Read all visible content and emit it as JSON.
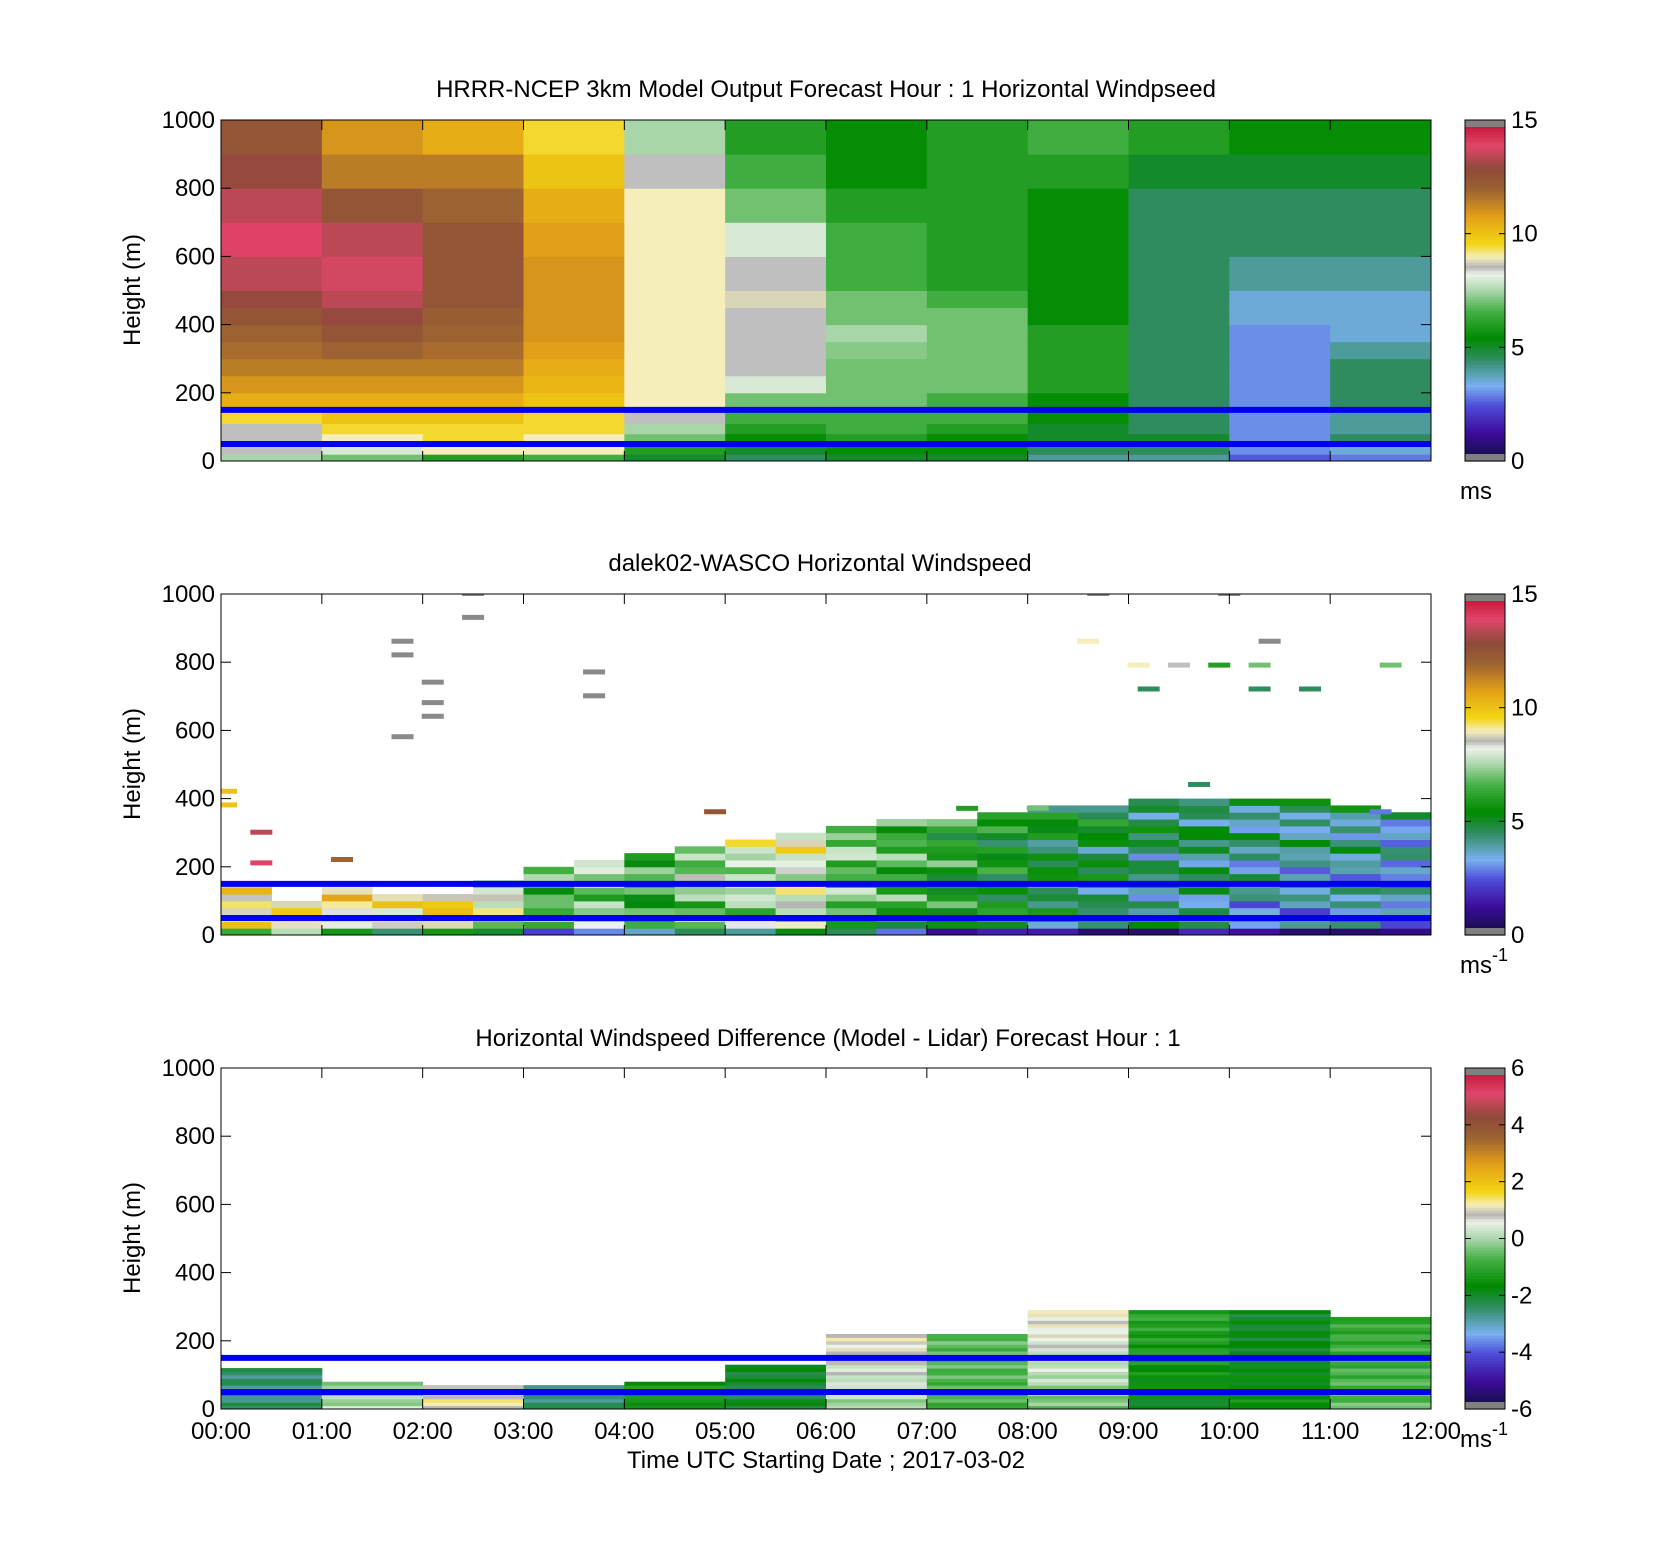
{
  "chart_data": [
    {
      "type": "heatmap",
      "title": "HRRR-NCEP 3km Model Output   Forecast Hour : 1 Horizontal Windpseed",
      "ylabel": "Height (m)",
      "xlim": [
        0,
        12
      ],
      "ylim": [
        0,
        1000
      ],
      "yticks": [
        "0",
        "200",
        "400",
        "600",
        "800",
        "1000"
      ],
      "colorbar": {
        "label": "ms",
        "superscript": "",
        "ticks": [
          "0",
          "5",
          "10",
          "15"
        ],
        "range": [
          0,
          15
        ]
      },
      "reference_lines_m": [
        150,
        50
      ],
      "heights_m": [
        20,
        50,
        80,
        110,
        150,
        200,
        250,
        300,
        350,
        400,
        450,
        500,
        600,
        700,
        800,
        900,
        1000
      ],
      "hours": [
        0,
        1,
        2,
        3,
        4,
        5,
        6,
        7,
        8,
        9,
        10,
        11,
        12
      ],
      "windspeed_ms": [
        [
          7.5,
          8.5,
          8.5,
          8.5,
          9.5,
          10.5,
          11,
          11.5,
          11.8,
          12,
          12.5,
          13,
          13.5,
          14,
          13.5,
          13,
          12.5
        ],
        [
          7,
          8,
          9,
          9.5,
          10,
          10.5,
          11,
          11.5,
          12,
          12.5,
          13,
          13.5,
          13.8,
          13.5,
          12.5,
          11.5,
          11
        ],
        [
          6,
          9,
          9.5,
          9.5,
          10,
          10.5,
          11,
          11.5,
          11.8,
          12,
          12.2,
          12.5,
          12.5,
          12.5,
          12,
          11.5,
          10.5
        ],
        [
          6.5,
          9,
          9,
          9.5,
          9.5,
          10,
          10.3,
          10.5,
          10.8,
          11,
          11,
          11,
          11,
          10.8,
          10.5,
          10,
          9.5
        ],
        [
          5,
          6,
          7,
          7.5,
          8.5,
          9,
          9,
          9,
          9,
          9,
          9,
          9,
          9,
          9,
          9,
          8.5,
          7.5
        ],
        [
          4.5,
          5,
          5.5,
          6,
          6.5,
          7,
          8,
          8.5,
          8.5,
          8.5,
          8.5,
          8.8,
          8.5,
          8,
          7,
          6.5,
          6
        ],
        [
          5,
          5.5,
          6,
          6.5,
          6.5,
          7,
          7,
          7,
          7.2,
          7.5,
          7,
          7,
          6.5,
          6.5,
          6,
          5.5,
          5.5
        ],
        [
          5,
          5.5,
          5.5,
          6,
          6.5,
          6.5,
          7,
          7,
          7,
          7,
          7,
          6.5,
          6,
          6,
          6,
          6,
          6
        ],
        [
          4,
          4.5,
          5,
          5,
          5.5,
          5.5,
          6,
          6,
          6,
          6,
          5.5,
          5.5,
          5.5,
          5.5,
          5.5,
          6,
          6.5
        ],
        [
          4,
          4.5,
          5,
          4.5,
          4.5,
          4.5,
          4.5,
          4.5,
          4.5,
          4.5,
          4.5,
          4.5,
          4.5,
          4.5,
          4.5,
          5,
          6
        ],
        [
          2.5,
          3,
          3,
          3,
          3,
          3,
          3,
          3,
          3,
          3,
          3.5,
          3.5,
          4,
          4.5,
          4.5,
          5,
          5.5
        ],
        [
          2.8,
          3.5,
          4.5,
          4,
          4,
          4.5,
          4.5,
          4.5,
          4,
          3.5,
          3.5,
          3.5,
          4,
          4.5,
          4.5,
          5,
          5.5
        ]
      ]
    },
    {
      "type": "heatmap",
      "title": "dalek02-WASCO  Horizontal Windspeed",
      "ylabel": "Height (m)",
      "xlim": [
        0,
        12
      ],
      "ylim": [
        0,
        1000
      ],
      "yticks": [
        "0",
        "200",
        "400",
        "600",
        "800",
        "1000"
      ],
      "colorbar": {
        "label": "ms",
        "superscript": "-1",
        "ticks": [
          "0",
          "5",
          "10",
          "15"
        ],
        "range": [
          0,
          15
        ]
      },
      "reference_lines_m": [
        150,
        50
      ],
      "profile_max_height_m": [
        140,
        100,
        130,
        110,
        120,
        150,
        190,
        220,
        240,
        260,
        280,
        300,
        310,
        330,
        340,
        350,
        380,
        380,
        390,
        400,
        400,
        400,
        380,
        360
      ],
      "profile_mean_windspeed_ms": [
        9,
        9.5,
        9,
        8.5,
        9,
        8,
        6.5,
        7,
        6,
        7,
        7.5,
        8,
        6.5,
        6,
        5.5,
        5,
        4.5,
        4.5,
        4,
        4,
        3.5,
        3.5,
        3.5,
        3
      ],
      "sparse_returns": [
        {
          "t": 1.8,
          "z_m": 860,
          "ws_ms": 20
        },
        {
          "t": 1.8,
          "z_m": 820,
          "ws_ms": 20
        },
        {
          "t": 2.1,
          "z_m": 740,
          "ws_ms": 20
        },
        {
          "t": 2.1,
          "z_m": 680,
          "ws_ms": 20
        },
        {
          "t": 2.1,
          "z_m": 640,
          "ws_ms": 20
        },
        {
          "t": 1.8,
          "z_m": 580,
          "ws_ms": 20
        },
        {
          "t": 2.5,
          "z_m": 930,
          "ws_ms": 20
        },
        {
          "t": 3.7,
          "z_m": 770,
          "ws_ms": 20
        },
        {
          "t": 3.7,
          "z_m": 700,
          "ws_ms": 20
        },
        {
          "t": 0.4,
          "z_m": 300,
          "ws_ms": 13.5
        },
        {
          "t": 0.4,
          "z_m": 210,
          "ws_ms": 14
        },
        {
          "t": 1.2,
          "z_m": 220,
          "ws_ms": 12
        },
        {
          "t": 0.05,
          "z_m": 420,
          "ws_ms": 10
        },
        {
          "t": 0.05,
          "z_m": 380,
          "ws_ms": 10
        },
        {
          "t": 4.9,
          "z_m": 360,
          "ws_ms": 12.5
        },
        {
          "t": 7.4,
          "z_m": 370,
          "ws_ms": 6
        },
        {
          "t": 8.1,
          "z_m": 370,
          "ws_ms": 7
        },
        {
          "t": 8.6,
          "z_m": 860,
          "ws_ms": 9
        },
        {
          "t": 9.1,
          "z_m": 790,
          "ws_ms": 9
        },
        {
          "t": 9.5,
          "z_m": 790,
          "ws_ms": 8.5
        },
        {
          "t": 9.9,
          "z_m": 790,
          "ws_ms": 6
        },
        {
          "t": 10.3,
          "z_m": 790,
          "ws_ms": 7
        },
        {
          "t": 9.2,
          "z_m": 720,
          "ws_ms": 4.5
        },
        {
          "t": 10.3,
          "z_m": 720,
          "ws_ms": 4.5
        },
        {
          "t": 10.8,
          "z_m": 720,
          "ws_ms": 4.5
        },
        {
          "t": 11.6,
          "z_m": 790,
          "ws_ms": 7
        },
        {
          "t": 10.4,
          "z_m": 860,
          "ws_ms": 20
        },
        {
          "t": 8.7,
          "z_m": 1000,
          "ws_ms": 20
        },
        {
          "t": 10.0,
          "z_m": 1000,
          "ws_ms": 20
        },
        {
          "t": 2.5,
          "z_m": 1000,
          "ws_ms": 20
        },
        {
          "t": 9.7,
          "z_m": 440,
          "ws_ms": 4.5
        },
        {
          "t": 11.5,
          "z_m": 360,
          "ws_ms": 2.8
        }
      ]
    },
    {
      "type": "heatmap",
      "title": "Horizontal Windspeed Difference (Model - Lidar) Forecast Hour : 1",
      "xlabel": "Time UTC  Starting Date ; 2017-03-02",
      "ylabel": "Height (m)",
      "xlim": [
        0,
        12
      ],
      "ylim": [
        0,
        1000
      ],
      "xticks": [
        "00:00",
        "01:00",
        "02:00",
        "03:00",
        "04:00",
        "05:00",
        "06:00",
        "07:00",
        "08:00",
        "09:00",
        "10:00",
        "11:00",
        "12:00"
      ],
      "yticks": [
        "0",
        "200",
        "400",
        "600",
        "800",
        "1000"
      ],
      "colorbar": {
        "label": "ms",
        "superscript": "-1",
        "ticks": [
          "-6",
          "-4",
          "-2",
          "0",
          "2",
          "4",
          "6"
        ],
        "range": [
          -6,
          6
        ]
      },
      "reference_lines_m": [
        150,
        50
      ],
      "hourly_top_m": [
        120,
        80,
        70,
        70,
        80,
        130,
        220,
        220,
        290,
        290,
        290,
        270
      ],
      "hourly_top_diff_ms": [
        -2.5,
        -0.5,
        1,
        -2.5,
        -1.5,
        -2,
        1,
        -0.5,
        1,
        -1,
        -2,
        -1
      ],
      "hourly_low_diff_ms": [
        -2.5,
        0.2,
        1.2,
        -2.5,
        -1.5,
        -2,
        -0.2,
        -0.8,
        -0.5,
        -2,
        -1.5,
        -0.5
      ]
    }
  ]
}
